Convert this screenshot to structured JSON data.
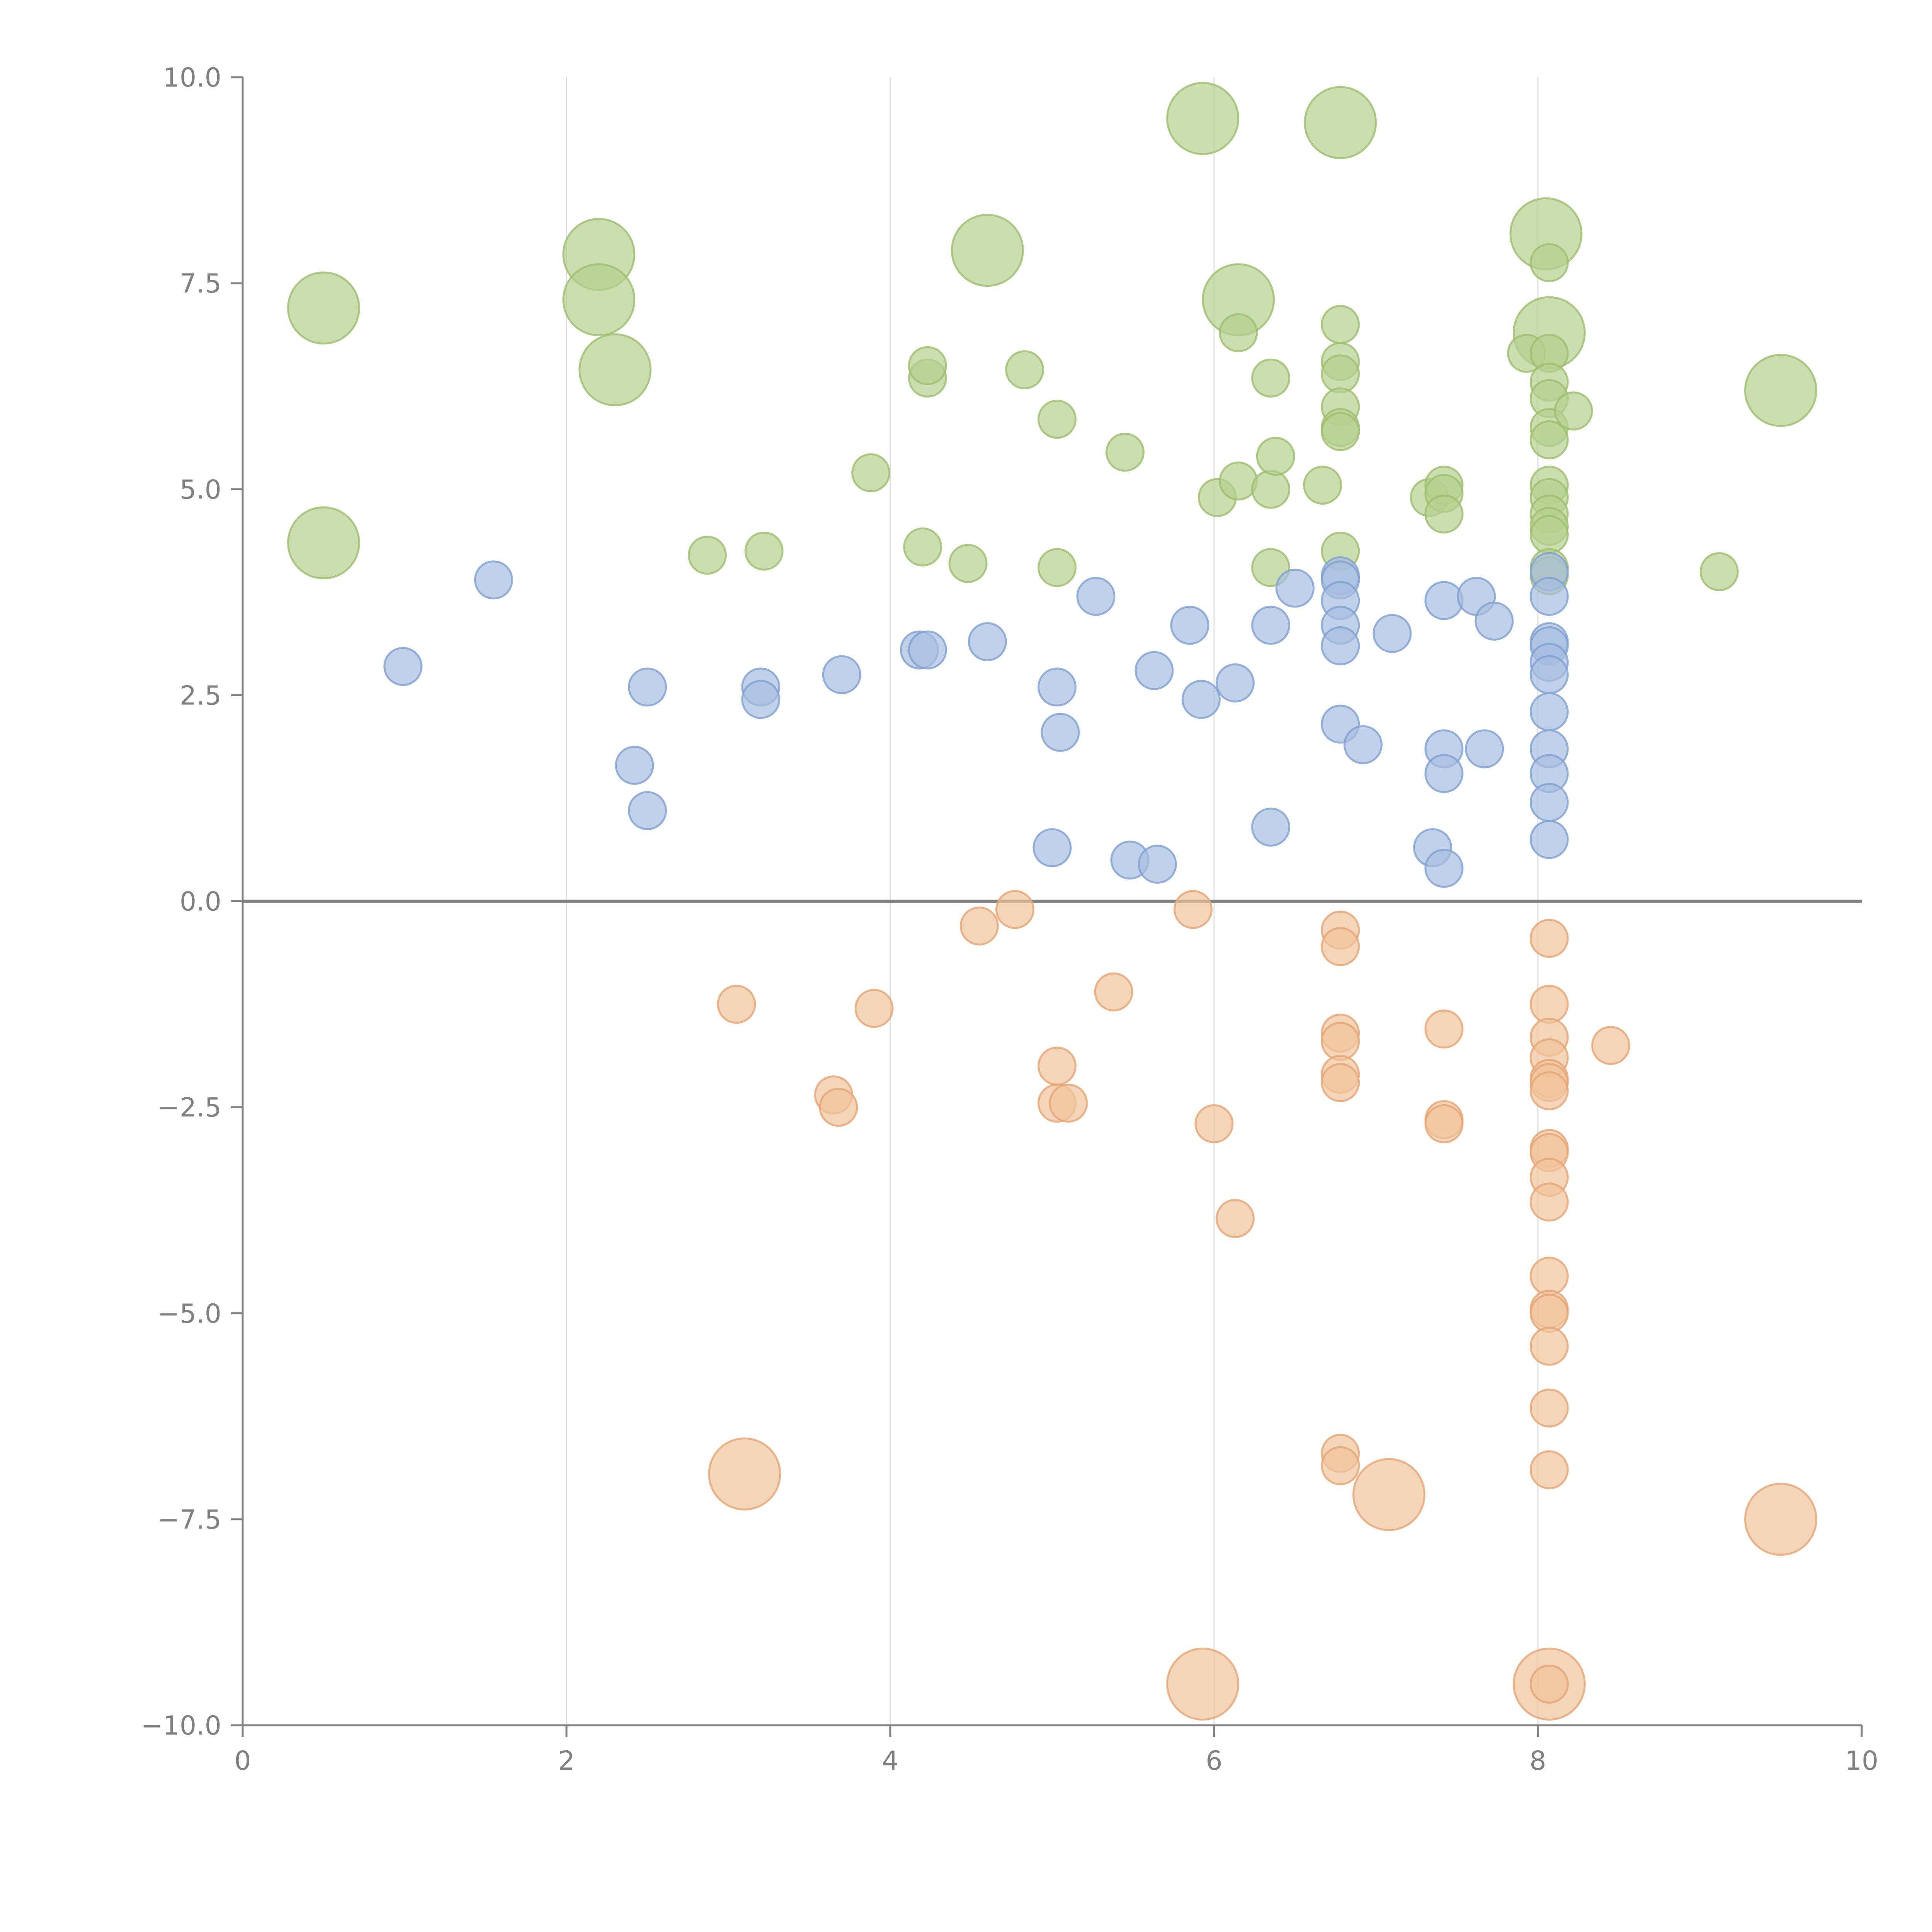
{
  "chart_data": {
    "type": "scatter",
    "title": "",
    "xlabel": "",
    "ylabel": "",
    "xlim": [
      0,
      10
    ],
    "ylim": [
      -10,
      10
    ],
    "x_ticks": [
      0,
      2,
      4,
      6,
      8,
      10
    ],
    "y_ticks": [
      10,
      7.5,
      5,
      2.5,
      0,
      -2.5,
      -5,
      -7.5,
      -10
    ],
    "x_tick_labels": [
      "0",
      "2",
      "4",
      "6",
      "8",
      "10"
    ],
    "y_tick_labels": [
      "10.0",
      "7.5",
      "5.0",
      "2.5",
      "0.0",
      "−2.5",
      "−5.0",
      "−7.5",
      "−10.0"
    ],
    "vertical_grid": [
      2,
      4,
      6,
      8
    ],
    "zero_line": true,
    "legend": "none",
    "series": [
      {
        "color": "#b5d08f",
        "stroke": "#9cbd6e",
        "size_note": "large bubbles = bigger markers",
        "points": [
          [
            0.5,
            7.2,
            2
          ],
          [
            0.5,
            4.35,
            2
          ],
          [
            2.2,
            7.85,
            2
          ],
          [
            2.2,
            7.3,
            2
          ],
          [
            2.3,
            6.45,
            2
          ],
          [
            4.6,
            7.9,
            2
          ],
          [
            5.93,
            9.5,
            2
          ],
          [
            6.78,
            9.45,
            2
          ],
          [
            6.15,
            7.3,
            2
          ],
          [
            8.05,
            8.1,
            2
          ],
          [
            8.07,
            6.9,
            2
          ],
          [
            9.5,
            6.2,
            2
          ],
          [
            2.87,
            4.2,
            1
          ],
          [
            3.22,
            4.25,
            1
          ],
          [
            3.88,
            5.2,
            1
          ],
          [
            4.2,
            4.3,
            1
          ],
          [
            4.23,
            6.35,
            1
          ],
          [
            4.23,
            6.5,
            1
          ],
          [
            4.48,
            4.1,
            1
          ],
          [
            4.83,
            6.45,
            1
          ],
          [
            5.03,
            5.85,
            1
          ],
          [
            5.03,
            4.05,
            1
          ],
          [
            5.45,
            5.45,
            1
          ],
          [
            6.02,
            4.9,
            1
          ],
          [
            6.15,
            5.1,
            1
          ],
          [
            6.15,
            6.9,
            1
          ],
          [
            6.35,
            6.35,
            1
          ],
          [
            6.35,
            5.0,
            1
          ],
          [
            6.35,
            4.05,
            1
          ],
          [
            6.38,
            5.4,
            1
          ],
          [
            6.67,
            5.05,
            1
          ],
          [
            6.78,
            7.0,
            1
          ],
          [
            6.78,
            6.55,
            1
          ],
          [
            6.78,
            6.4,
            1
          ],
          [
            6.78,
            6.0,
            1
          ],
          [
            6.78,
            5.75,
            1
          ],
          [
            6.78,
            5.7,
            1
          ],
          [
            6.78,
            4.25,
            1
          ],
          [
            7.33,
            4.9,
            1
          ],
          [
            7.42,
            5.05,
            1
          ],
          [
            7.42,
            4.95,
            1
          ],
          [
            7.42,
            4.7,
            1
          ],
          [
            7.93,
            6.65,
            1
          ],
          [
            8.07,
            7.75,
            1
          ],
          [
            8.07,
            6.65,
            1
          ],
          [
            8.07,
            6.3,
            1
          ],
          [
            8.07,
            6.1,
            1
          ],
          [
            8.07,
            5.75,
            1
          ],
          [
            8.07,
            5.6,
            1
          ],
          [
            8.07,
            5.05,
            1
          ],
          [
            8.07,
            4.9,
            1
          ],
          [
            8.07,
            4.7,
            1
          ],
          [
            8.07,
            4.55,
            1
          ],
          [
            8.07,
            4.45,
            1
          ],
          [
            8.07,
            4.05,
            1
          ],
          [
            8.07,
            3.95,
            1
          ],
          [
            8.22,
            5.95,
            1
          ],
          [
            9.12,
            4.0,
            1
          ]
        ]
      },
      {
        "color": "#a7bde0",
        "stroke": "#7f9fd0",
        "points": [
          [
            0.99,
            2.85,
            1
          ],
          [
            1.55,
            3.9,
            1
          ],
          [
            2.42,
            1.65,
            1
          ],
          [
            2.5,
            2.6,
            1
          ],
          [
            2.5,
            1.1,
            1
          ],
          [
            3.2,
            2.6,
            1
          ],
          [
            3.2,
            2.45,
            1
          ],
          [
            3.7,
            2.75,
            1
          ],
          [
            4.18,
            3.05,
            1
          ],
          [
            4.23,
            3.05,
            1
          ],
          [
            4.6,
            3.15,
            1
          ],
          [
            5.0,
            0.65,
            1
          ],
          [
            5.03,
            2.6,
            1
          ],
          [
            5.05,
            2.05,
            1
          ],
          [
            5.27,
            3.7,
            1
          ],
          [
            5.48,
            0.5,
            1
          ],
          [
            5.63,
            2.8,
            1
          ],
          [
            5.65,
            0.45,
            1
          ],
          [
            5.85,
            3.35,
            1
          ],
          [
            5.92,
            2.45,
            1
          ],
          [
            6.13,
            2.65,
            1
          ],
          [
            6.35,
            3.35,
            1
          ],
          [
            6.35,
            0.9,
            1
          ],
          [
            6.5,
            3.8,
            1
          ],
          [
            6.78,
            3.95,
            1
          ],
          [
            6.78,
            3.9,
            1
          ],
          [
            6.78,
            3.65,
            1
          ],
          [
            6.78,
            3.35,
            1
          ],
          [
            6.78,
            3.1,
            1
          ],
          [
            6.78,
            2.15,
            1
          ],
          [
            6.92,
            1.9,
            1
          ],
          [
            7.1,
            3.25,
            1
          ],
          [
            7.35,
            0.65,
            1
          ],
          [
            7.42,
            3.65,
            1
          ],
          [
            7.42,
            1.85,
            1
          ],
          [
            7.42,
            1.55,
            1
          ],
          [
            7.42,
            0.4,
            1
          ],
          [
            7.62,
            3.7,
            1
          ],
          [
            7.67,
            1.85,
            1
          ],
          [
            7.73,
            3.4,
            1
          ],
          [
            8.07,
            4.0,
            1
          ],
          [
            8.07,
            3.7,
            1
          ],
          [
            8.07,
            3.15,
            1
          ],
          [
            8.07,
            3.1,
            1
          ],
          [
            8.07,
            2.9,
            1
          ],
          [
            8.07,
            2.75,
            1
          ],
          [
            8.07,
            2.3,
            1
          ],
          [
            8.07,
            1.85,
            1
          ],
          [
            8.07,
            1.55,
            1
          ],
          [
            8.07,
            1.2,
            1
          ],
          [
            8.07,
            0.75,
            1
          ]
        ]
      },
      {
        "color": "#f1c39b",
        "stroke": "#e5a473",
        "points": [
          [
            3.1,
            -6.95,
            2
          ],
          [
            5.93,
            -9.5,
            2
          ],
          [
            7.08,
            -7.2,
            2
          ],
          [
            8.07,
            -9.5,
            2
          ],
          [
            9.5,
            -7.5,
            2
          ],
          [
            3.05,
            -1.25,
            1
          ],
          [
            3.65,
            -2.35,
            1
          ],
          [
            3.68,
            -2.5,
            1
          ],
          [
            3.9,
            -1.3,
            1
          ],
          [
            4.55,
            -0.3,
            1
          ],
          [
            4.77,
            -0.1,
            1
          ],
          [
            5.03,
            -2.0,
            1
          ],
          [
            5.03,
            -2.45,
            1
          ],
          [
            5.1,
            -2.45,
            1
          ],
          [
            5.38,
            -1.1,
            1
          ],
          [
            5.87,
            -0.1,
            1
          ],
          [
            6.0,
            -2.7,
            1
          ],
          [
            6.13,
            -3.85,
            1
          ],
          [
            6.78,
            -0.35,
            1
          ],
          [
            6.78,
            -0.55,
            1
          ],
          [
            6.78,
            -1.6,
            1
          ],
          [
            6.78,
            -1.7,
            1
          ],
          [
            6.78,
            -2.1,
            1
          ],
          [
            6.78,
            -2.2,
            1
          ],
          [
            6.78,
            -6.7,
            1
          ],
          [
            6.78,
            -6.85,
            1
          ],
          [
            7.42,
            -1.55,
            1
          ],
          [
            7.42,
            -2.65,
            1
          ],
          [
            7.42,
            -2.7,
            1
          ],
          [
            8.07,
            -0.45,
            1
          ],
          [
            8.07,
            -1.25,
            1
          ],
          [
            8.07,
            -1.65,
            1
          ],
          [
            8.07,
            -1.9,
            1
          ],
          [
            8.07,
            -2.15,
            1
          ],
          [
            8.07,
            -2.2,
            1
          ],
          [
            8.07,
            -2.3,
            1
          ],
          [
            8.07,
            -3.0,
            1
          ],
          [
            8.07,
            -3.05,
            1
          ],
          [
            8.07,
            -3.35,
            1
          ],
          [
            8.07,
            -3.65,
            1
          ],
          [
            8.07,
            -4.55,
            1
          ],
          [
            8.07,
            -4.95,
            1
          ],
          [
            8.07,
            -5.0,
            1
          ],
          [
            8.07,
            -5.4,
            1
          ],
          [
            8.07,
            -6.15,
            1
          ],
          [
            8.07,
            -6.9,
            1
          ],
          [
            8.07,
            -9.5,
            1
          ],
          [
            8.45,
            -1.75,
            1
          ]
        ]
      }
    ]
  }
}
